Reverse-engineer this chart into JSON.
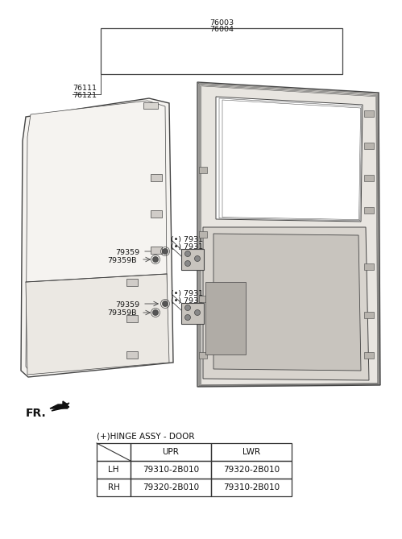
{
  "bg_color": "#ffffff",
  "part_numbers_top": [
    "76003",
    "76004"
  ],
  "part_numbers_left": [
    "76111",
    "76121"
  ],
  "hinge_labels_upper": [
    "(•) 79311",
    "(•) 79312"
  ],
  "hinge_labels_lower": [
    "(•) 79311",
    "(•) 79312"
  ],
  "bolt_label_upper1": "79359",
  "bolt_label_upper2": "79359B",
  "bolt_label_lower1": "79359",
  "bolt_label_lower2": "79359B",
  "fr_label": "FR.",
  "table_title": "(+)HINGE ASSY - DOOR",
  "table_headers": [
    "",
    "UPR",
    "LWR"
  ],
  "table_rows": [
    [
      "LH",
      "79310-2B010",
      "79320-2B010"
    ],
    [
      "RH",
      "79320-2B010",
      "79310-2B010"
    ]
  ],
  "lc": "#444444",
  "tc": "#111111"
}
